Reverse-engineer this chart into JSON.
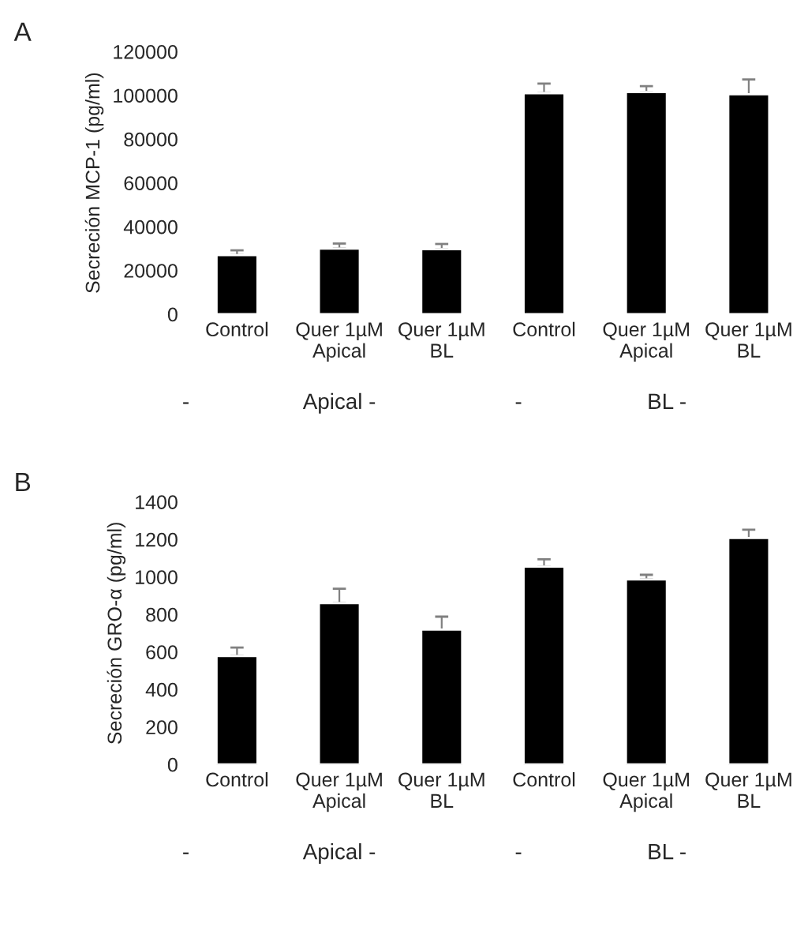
{
  "chart_data": [
    {
      "type": "bar",
      "title": "A",
      "ylabel": "Secreción MCP-1 (pg/ml)",
      "categories": [
        "Control",
        "Quer 1µM\nApical",
        "Quer 1µM\nBL",
        "Control",
        "Quer 1µM\nApical",
        "Quer 1µM\nBL"
      ],
      "values": [
        27000,
        30000,
        29700,
        101000,
        101500,
        100500
      ],
      "errors": [
        [
          27000,
          29200
        ],
        [
          30000,
          32300
        ],
        [
          29700,
          32100
        ],
        [
          101000,
          105400
        ],
        [
          101500,
          104200
        ],
        [
          100500,
          107300
        ]
      ],
      "color": "#000000",
      "ylim": [
        0,
        120000
      ],
      "yticks": [
        0,
        20000,
        40000,
        60000,
        80000,
        100000,
        120000
      ],
      "grid": false,
      "annotations": [
        "-",
        "Apical -",
        "-",
        "BL -"
      ]
    },
    {
      "type": "bar",
      "title": "B",
      "ylabel": "Secreción GRO-α (pg/ml)",
      "categories": [
        "Control",
        "Quer 1µM\nApical",
        "Quer 1µM\nBL",
        "Control",
        "Quer 1µM\nApical",
        "Quer 1µM\nBL"
      ],
      "values": [
        578,
        860,
        719,
        1055,
        986,
        1207
      ],
      "errors": [
        [
          578,
          623
        ],
        [
          860,
          937
        ],
        [
          719,
          788
        ],
        [
          1055,
          1094
        ],
        [
          986,
          1011
        ],
        [
          1207,
          1251
        ]
      ],
      "color": "#000000",
      "ylim": [
        0,
        1400
      ],
      "yticks": [
        0,
        200,
        400,
        600,
        800,
        1000,
        1200,
        1400
      ],
      "grid": false,
      "annotations": [
        "-",
        "Apical -",
        "-",
        "BL -"
      ]
    }
  ]
}
